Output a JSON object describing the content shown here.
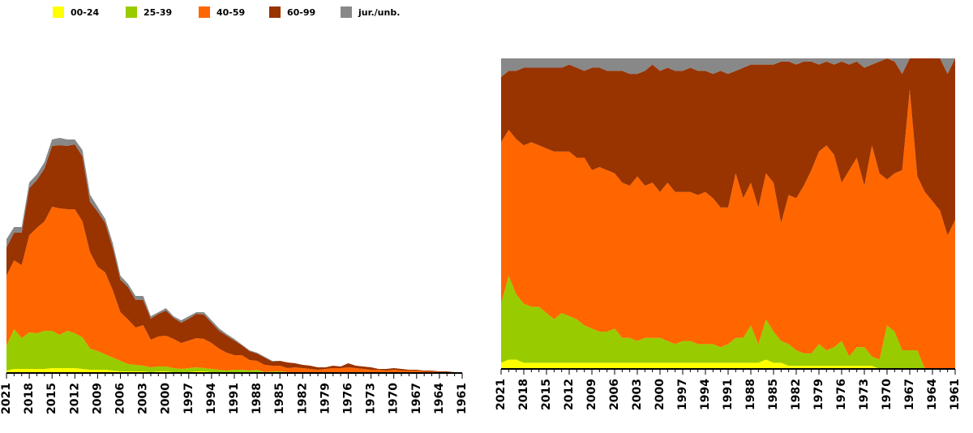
{
  "chart_data": [
    {
      "type": "area",
      "stacked": true,
      "ylim": [
        0,
        300
      ],
      "categories": [
        "2021",
        null,
        null,
        "2018",
        null,
        null,
        "2015",
        null,
        null,
        "2012",
        null,
        null,
        "2009",
        null,
        null,
        "2006",
        null,
        null,
        "2003",
        null,
        null,
        "2000",
        null,
        null,
        "1997",
        null,
        null,
        "1994",
        null,
        null,
        "1991",
        null,
        null,
        "1988",
        null,
        null,
        "1985",
        null,
        null,
        "1982",
        null,
        null,
        "1979",
        null,
        null,
        "1976",
        null,
        null,
        "1973",
        null,
        null,
        "1970",
        null,
        null,
        "1967",
        null,
        null,
        "1964",
        null,
        null,
        "1961"
      ],
      "series": [
        {
          "name": "00-24",
          "color": "#ffff00",
          "values": [
            3,
            5,
            5,
            5,
            5,
            5,
            6,
            6,
            6,
            6,
            5,
            4,
            4,
            4,
            3,
            2,
            2,
            2,
            2,
            1,
            2,
            2,
            1,
            1,
            1,
            2,
            2,
            1,
            1,
            1,
            1,
            1,
            1,
            1,
            0,
            0,
            0,
            0,
            0,
            0,
            0,
            0,
            0,
            0,
            0,
            0,
            0,
            0,
            0,
            0,
            0,
            0,
            0,
            0,
            0,
            0,
            0,
            0,
            0,
            0,
            0
          ]
        },
        {
          "name": "25-39",
          "color": "#99cc00",
          "values": [
            31,
            49,
            38,
            45,
            44,
            47,
            46,
            41,
            46,
            43,
            39,
            26,
            23,
            19,
            16,
            13,
            9,
            8,
            7,
            6,
            6,
            6,
            5,
            4,
            5,
            5,
            4,
            4,
            3,
            2,
            3,
            3,
            2,
            3,
            1,
            2,
            2,
            1,
            1,
            1,
            0,
            0,
            1,
            0,
            1,
            1,
            0,
            0,
            0,
            0,
            0,
            1,
            1,
            0,
            0,
            0,
            0,
            0,
            0,
            0,
            0
          ]
        },
        {
          "name": "40-59",
          "color": "#ff6600",
          "values": [
            86,
            85,
            90,
            120,
            130,
            135,
            153,
            156,
            150,
            153,
            143,
            119,
            104,
            101,
            83,
            60,
            55,
            46,
            50,
            34,
            37,
            38,
            36,
            32,
            34,
            36,
            36,
            32,
            26,
            22,
            18,
            18,
            13,
            11,
            9,
            7,
            7,
            5,
            6,
            5,
            5,
            4,
            4,
            6,
            5,
            6,
            6,
            5,
            4,
            4,
            3,
            3,
            2,
            3,
            3,
            2,
            2,
            1,
            1,
            0,
            0
          ]
        },
        {
          "name": "60-99",
          "color": "#993300",
          "values": [
            35,
            34,
            40,
            58,
            59,
            65,
            75,
            78,
            78,
            80,
            80,
            62,
            68,
            61,
            52,
            40,
            40,
            34,
            31,
            26,
            28,
            31,
            26,
            25,
            27,
            30,
            30,
            25,
            22,
            21,
            18,
            12,
            11,
            9,
            9,
            5,
            6,
            7,
            5,
            4,
            4,
            3,
            2,
            3,
            2,
            5,
            3,
            3,
            3,
            1,
            2,
            2,
            2,
            1,
            1,
            1,
            1,
            1,
            1,
            1,
            1
          ]
        },
        {
          "name": "jur./unb.",
          "color": "#888888",
          "values": [
            10,
            7,
            7,
            7,
            7,
            8,
            8,
            9,
            8,
            6,
            8,
            9,
            6,
            5,
            6,
            5,
            4,
            5,
            5,
            3,
            2,
            3,
            2,
            3,
            3,
            2,
            3,
            3,
            3,
            2,
            2,
            1,
            1,
            1,
            1,
            1,
            0,
            0,
            0,
            0,
            0,
            0,
            0,
            0,
            0,
            0,
            0,
            0,
            0,
            0,
            0,
            0,
            0,
            0,
            0,
            0,
            0,
            0,
            0,
            0,
            0
          ]
        }
      ]
    },
    {
      "type": "area",
      "stacked": true,
      "ylim": [
        0,
        100
      ],
      "categories": [
        "2021",
        null,
        null,
        "2018",
        null,
        null,
        "2015",
        null,
        null,
        "2012",
        null,
        null,
        "2009",
        null,
        null,
        "2006",
        null,
        null,
        "2003",
        null,
        null,
        "2000",
        null,
        null,
        "1997",
        null,
        null,
        "1994",
        null,
        null,
        "1991",
        null,
        null,
        "1988",
        null,
        null,
        "1985",
        null,
        null,
        "1982",
        null,
        null,
        "1979",
        null,
        null,
        "1976",
        null,
        null,
        "1973",
        null,
        null,
        "1970",
        null,
        null,
        "1967",
        null,
        null,
        "1964",
        null,
        null,
        "1961"
      ],
      "series": [
        {
          "color": "#ffff00",
          "values": [
            2,
            3,
            3,
            2,
            2,
            2,
            2,
            2,
            2,
            2,
            2,
            2,
            2,
            2,
            2,
            2,
            2,
            2,
            2,
            2,
            2,
            2,
            2,
            2,
            2,
            2,
            2,
            2,
            2,
            2,
            2,
            2,
            2,
            2,
            2,
            3,
            2,
            2,
            1,
            1,
            1,
            1,
            1,
            1,
            1,
            1,
            1,
            1,
            1,
            1,
            0,
            0,
            0,
            0,
            0,
            0,
            0,
            0,
            0,
            0,
            0
          ]
        },
        {
          "color": "#99cc00",
          "values": [
            19,
            27,
            21,
            19,
            18,
            18,
            16,
            14,
            16,
            15,
            14,
            12,
            11,
            10,
            10,
            11,
            8,
            8,
            7,
            8,
            8,
            8,
            7,
            6,
            7,
            7,
            6,
            6,
            6,
            5,
            6,
            8,
            8,
            12,
            6,
            13,
            10,
            7,
            7,
            5,
            4,
            4,
            7,
            5,
            6,
            8,
            3,
            6,
            6,
            3,
            3,
            14,
            12,
            6,
            6,
            6,
            0,
            0,
            0,
            0,
            0
          ]
        },
        {
          "color": "#ff6600",
          "values": [
            52,
            47,
            50,
            51,
            53,
            52,
            53,
            54,
            52,
            53,
            52,
            54,
            51,
            53,
            52,
            50,
            50,
            49,
            53,
            49,
            50,
            47,
            51,
            49,
            48,
            48,
            48,
            49,
            47,
            45,
            44,
            53,
            45,
            46,
            44,
            47,
            48,
            38,
            48,
            49,
            54,
            59,
            62,
            66,
            62,
            51,
            60,
            61,
            52,
            68,
            60,
            47,
            51,
            58,
            84,
            56,
            57,
            54,
            51,
            43,
            48
          ]
        },
        {
          "color": "#993300",
          "values": [
            21,
            19,
            22,
            25,
            24,
            25,
            26,
            27,
            27,
            28,
            29,
            28,
            33,
            32,
            32,
            33,
            36,
            36,
            33,
            37,
            38,
            39,
            37,
            39,
            39,
            40,
            40,
            39,
            40,
            44,
            43,
            33,
            42,
            38,
            46,
            35,
            38,
            52,
            43,
            43,
            40,
            35,
            28,
            27,
            29,
            39,
            34,
            31,
            38,
            26,
            36,
            39,
            36,
            31,
            10,
            38,
            43,
            46,
            49,
            52,
            52
          ]
        },
        {
          "color": "#888888",
          "values": [
            6,
            4,
            4,
            3,
            3,
            3,
            3,
            3,
            3,
            2,
            3,
            4,
            3,
            3,
            4,
            4,
            4,
            5,
            5,
            4,
            2,
            4,
            3,
            4,
            4,
            3,
            4,
            4,
            5,
            4,
            5,
            4,
            3,
            2,
            2,
            2,
            2,
            1,
            1,
            2,
            1,
            1,
            2,
            1,
            2,
            1,
            2,
            1,
            3,
            2,
            1,
            0,
            1,
            5,
            0,
            0,
            0,
            0,
            0,
            5,
            0
          ]
        }
      ]
    }
  ]
}
